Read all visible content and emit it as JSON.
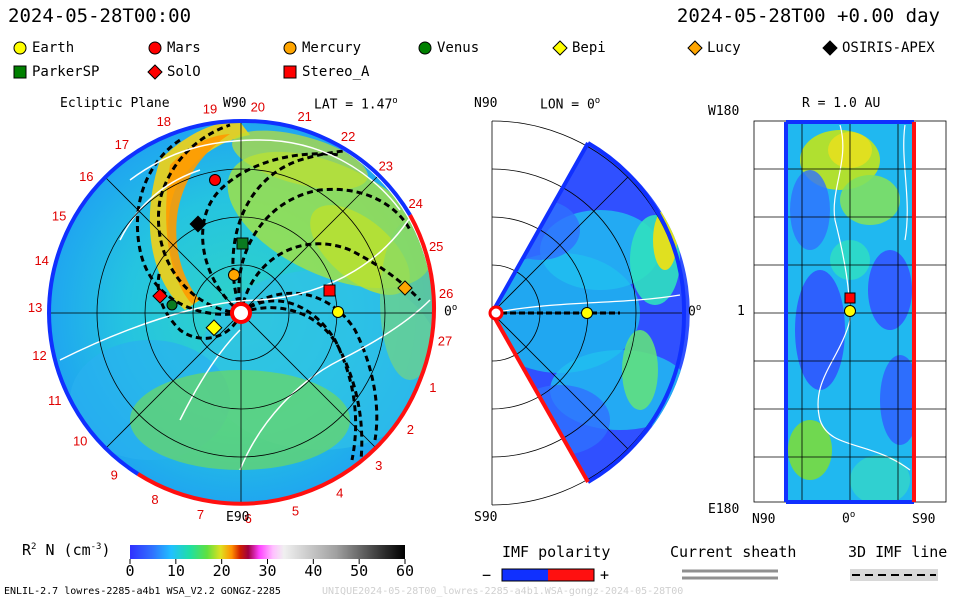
{
  "header": {
    "date_left": "2024-05-28T00:00",
    "date_right": "2024-05-28T00 +0.00 day"
  },
  "legend": [
    {
      "name": "Earth",
      "shape": "circle",
      "color": "#ffff00"
    },
    {
      "name": "Mars",
      "shape": "circle",
      "color": "#ff0000"
    },
    {
      "name": "Mercury",
      "shape": "circle",
      "color": "#ffa500"
    },
    {
      "name": "Venus",
      "shape": "circle",
      "color": "#008000"
    },
    {
      "name": "Bepi",
      "shape": "diamond",
      "color": "#ffff00"
    },
    {
      "name": "Lucy",
      "shape": "diamond",
      "color": "#ffa500"
    },
    {
      "name": "OSIRIS-APEX",
      "shape": "diamond",
      "color": "#000000"
    },
    {
      "name": "ParkerSP",
      "shape": "square",
      "color": "#008000"
    },
    {
      "name": "SolO",
      "shape": "diamond",
      "color": "#ff0000"
    },
    {
      "name": "Stereo_A",
      "shape": "square",
      "color": "#ff0000"
    }
  ],
  "panel_ecliptic": {
    "title": "Ecliptic Plane",
    "top_label": "W90",
    "lat_label": "LAT = 1.47",
    "right_label": "0",
    "bottom_label": "E90",
    "carrington_labels": [
      "1",
      "2",
      "3",
      "4",
      "5",
      "6",
      "7",
      "8",
      "9",
      "10",
      "11",
      "12",
      "13",
      "14",
      "15",
      "16",
      "17",
      "18",
      "19",
      "20",
      "21",
      "22",
      "23",
      "24",
      "25",
      "26",
      "27"
    ]
  },
  "panel_meridional": {
    "top_left": "N90",
    "lon_label": "LON = 0",
    "right_label": "0",
    "bottom_left": "S90"
  },
  "panel_map": {
    "r_label": "R = 1.0 AU",
    "top_left": "W180",
    "mid_left": "1",
    "bottom_left": "E180",
    "x_labels": [
      "N90",
      "0",
      "S90"
    ]
  },
  "colorbar": {
    "label": "R",
    "label_sup": "2",
    "label_rest": " N (cm",
    "label_exp": "-3",
    "label_end": ")",
    "ticks": [
      "0",
      "10",
      "20",
      "30",
      "40",
      "50",
      "60"
    ]
  },
  "imf_legend": {
    "title": "IMF polarity",
    "minus": "−",
    "plus": "+",
    "sheath": "Current sheath",
    "line3d": "3D IMF line"
  },
  "footer": {
    "left": "ENLIL-2.7 lowres-2285-a4b1 WSA_V2.2 GONGZ-2285",
    "right": "UNIQUE2024-05-28T00_lowres-2285-a4b1.WSA-gongz-2024-05-28T00"
  },
  "chart_data": {
    "type": "heatmap",
    "title": "Ecliptic Plane",
    "quantity": "R2 N (cm-3)",
    "colorbar_range": [
      0,
      60
    ],
    "colorbar_ticks": [
      0,
      10,
      20,
      30,
      40,
      50,
      60
    ],
    "panels": [
      "Ecliptic Plane",
      "LON = 0",
      "R = 1.0 AU"
    ],
    "latitude_deg": 1.47,
    "longitude_deg": 0,
    "radius_au": 1.0
  }
}
